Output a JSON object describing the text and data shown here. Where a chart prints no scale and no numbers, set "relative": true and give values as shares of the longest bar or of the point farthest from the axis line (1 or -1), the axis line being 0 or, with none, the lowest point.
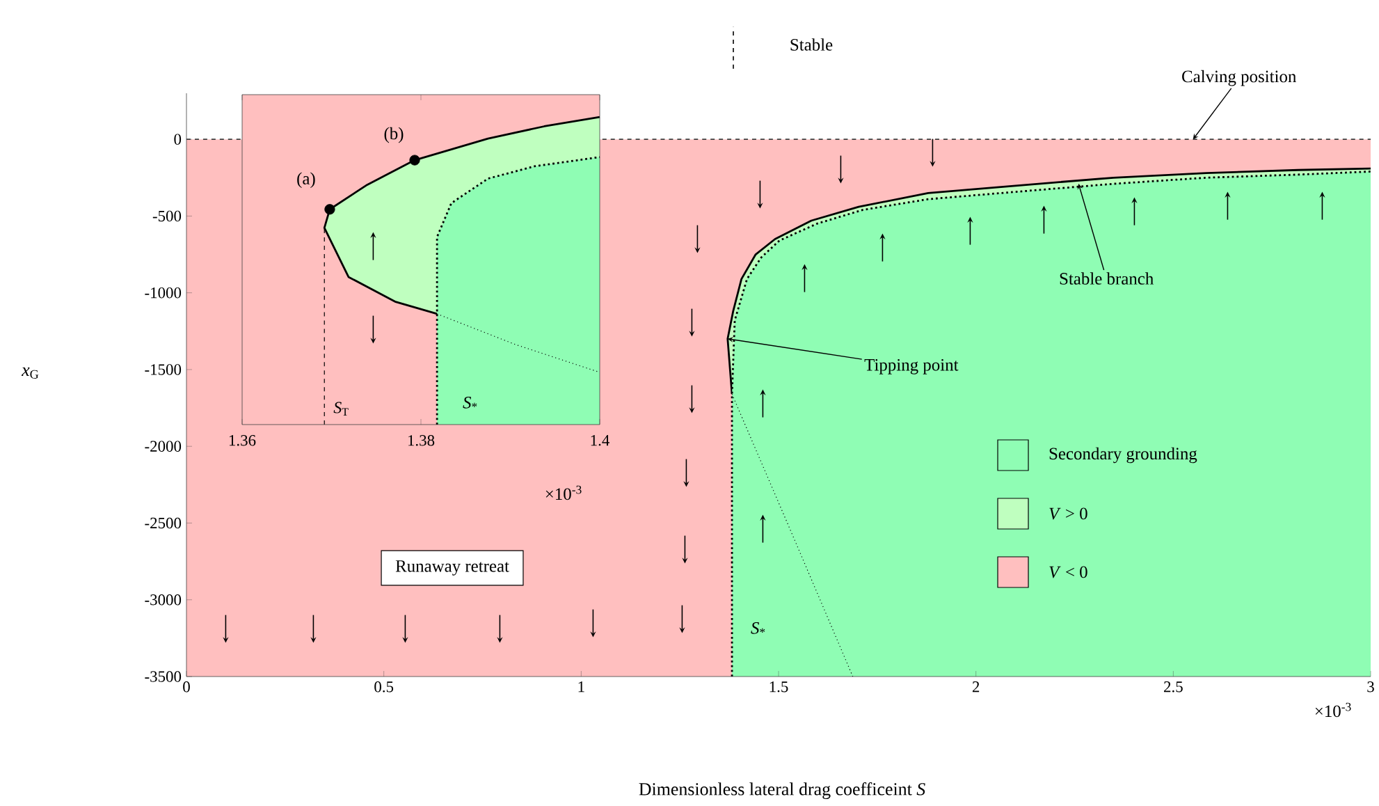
{
  "chart_data": [
    {
      "type": "area",
      "xlabel": "Dimensionless lateral drag coefficeint *S*",
      "ylabel": "*x*$_{G}$",
      "xlim": [
        0,
        3
      ],
      "ylim": [
        -3500,
        300
      ],
      "xticks": [
        0,
        0.5,
        1,
        1.5,
        2,
        2.5,
        3
      ],
      "yticks": [
        -3500,
        -3000,
        -2500,
        -2000,
        -1500,
        -1000,
        -500,
        0
      ],
      "legend": "right",
      "bands": [
        {
          "axis": "y",
          "from": -3500,
          "to": 0,
          "color": "#ffbfbf",
          "label": "*V* < 0"
        }
      ],
      "series": [
        {
          "name": "*V* > 0",
          "color": "#bfffbf",
          "line_style": "solid",
          "x": [
            1.382,
            1.371,
            1.385,
            1.406,
            1.442,
            1.491,
            1.583,
            1.703,
            1.879,
            2.111,
            2.348,
            2.584,
            2.816,
            3.0,
            3.0
          ],
          "values": [
            -1660,
            -1300,
            -1120,
            -910,
            -750,
            -650,
            -530,
            -440,
            -350,
            -300,
            -250,
            -220,
            -200,
            -190,
            -3500
          ]
        },
        {
          "name": "Secondary grounding",
          "color": "#8ffdb4",
          "line_style": "dotted",
          "x": [
            1.382,
            1.382,
            1.389,
            1.42,
            1.456,
            1.502,
            1.597,
            1.713,
            1.879,
            2.111,
            2.348,
            2.584,
            2.816,
            3.0,
            3.0
          ],
          "values": [
            -3500,
            -1660,
            -1180,
            -910,
            -770,
            -660,
            -550,
            -460,
            -390,
            -340,
            -290,
            -250,
            -230,
            -210,
            -3500
          ]
        },
        {
          "type": "line",
          "color": "#000000",
          "line_style": "dotted",
          "x": [
            1.382,
            1.539,
            1.688
          ],
          "values": [
            -1660,
            -2600,
            -3500
          ]
        }
      ],
      "ref_lines": [
        {
          "axis": "y",
          "value": 0,
          "color": "#404040",
          "line_style": "dashed"
        }
      ],
      "annotations": [
        {
          "text": "Calving position",
          "x": 2.55,
          "y": 0
        },
        {
          "text": "Stable branch",
          "x": 2.26,
          "y": -290
        },
        {
          "text": "Tipping point",
          "x": 1.371,
          "y": -1300
        },
        {
          "text": "*S*$_{*}$",
          "x": 1.382,
          "y": -3500
        },
        "Runaway retreat",
        "×10$^{-3}$",
        "Stable"
      ]
    },
    {
      "type": "area",
      "relative": true,
      "xlim": [
        1.36,
        1.4
      ],
      "xticks": [
        1.36,
        1.38,
        1.4
      ],
      "tick_labels": "x",
      "bands": [
        {
          "axis": "x",
          "from": 1.36,
          "to": 1.4,
          "color": "#ffbfbf"
        }
      ],
      "series": [
        {
          "color": "#bfffbf",
          "line_style": "solid",
          "x": [
            1.3818,
            1.3771,
            1.3719,
            1.3692,
            1.3698,
            1.374,
            1.3793,
            1.3875,
            1.3938,
            1.4,
            1.4
          ],
          "values": [
            0.36,
            0.4,
            0.48,
            0.64,
            0.7,
            0.78,
            0.86,
            0.93,
            0.97,
            1,
            0
          ]
        },
        {
          "color": "#8ffdb4",
          "line_style": "dotted",
          "x": [
            1.3818,
            1.3818,
            1.3834,
            1.3875,
            1.3927,
            1.4,
            1.4
          ],
          "values": [
            0,
            0.61,
            0.72,
            0.8,
            0.84,
            0.87,
            0
          ]
        },
        {
          "type": "line",
          "color": "#000000",
          "line_style": "dotted",
          "x": [
            1.3818,
            1.3906,
            1.4
          ],
          "values": [
            0.36,
            0.26,
            0.17
          ]
        },
        {
          "name": "*S*$_{T}$",
          "type": "line",
          "color": "#000000",
          "line_style": "dashed",
          "x": [
            1.3692,
            1.3692
          ],
          "values": [
            0,
            0.64
          ]
        },
        {
          "type": "scatter",
          "marker": "circle",
          "color": "#000000",
          "x": [
            1.3698,
            1.3793
          ],
          "values": [
            0.7,
            0.86
          ]
        }
      ],
      "annotations": [
        {
          "text": "(a)",
          "x": 1.3698,
          "y": 0.7
        },
        {
          "text": "(b)",
          "x": 1.3793,
          "y": 0.86
        },
        {
          "text": "*S*$_{*}$",
          "x": 1.3818,
          "y": 0
        },
        "×10$^{-3}$"
      ]
    }
  ]
}
